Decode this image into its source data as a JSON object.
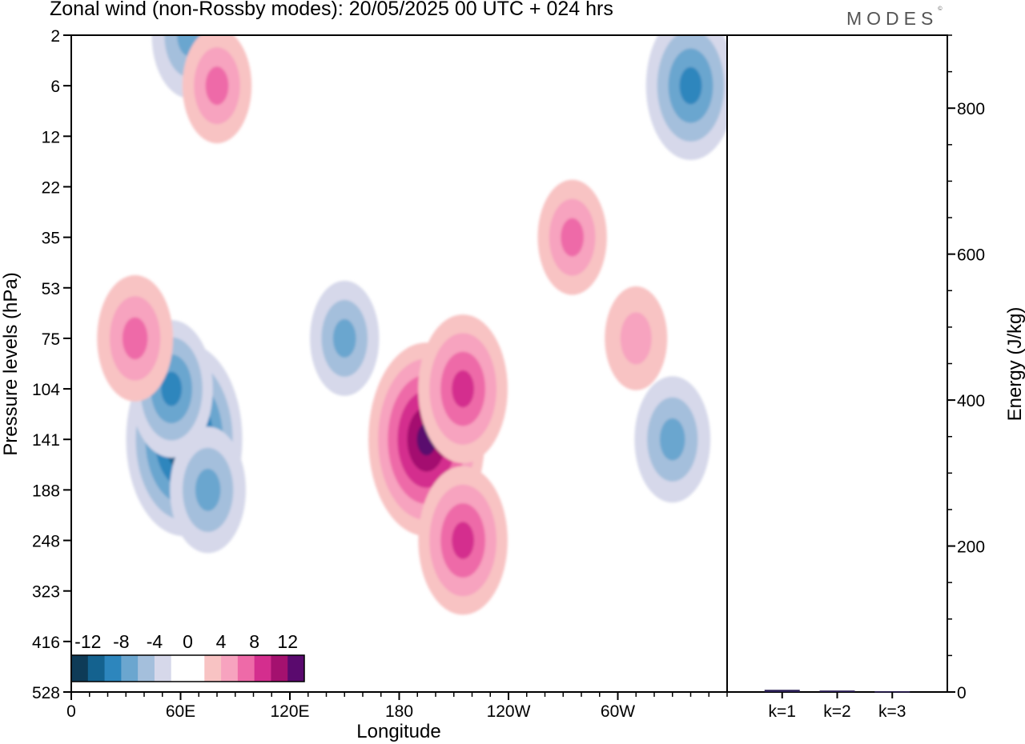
{
  "header": {
    "title": "Zonal wind (non-Rossby modes):  20/05/2025  00 UTC  + 024 hrs",
    "logo_text": "MODES",
    "logo_mark": "©"
  },
  "chart_data": [
    {
      "type": "heatmap",
      "title": "Zonal wind (non-Rossby modes):  20/05/2025  00 UTC  + 024 hrs",
      "xlabel": "Longitude",
      "ylabel": "Pressure levels (hPa)",
      "x_ticks": [
        "0",
        "60E",
        "120E",
        "180",
        "120W",
        "60W"
      ],
      "x_tick_degrees": [
        0,
        60,
        120,
        180,
        240,
        300
      ],
      "xlim": [
        0,
        360
      ],
      "y_ticks": [
        "2",
        "6",
        "12",
        "22",
        "35",
        "53",
        "75",
        "104",
        "141",
        "188",
        "248",
        "323",
        "416",
        "528"
      ],
      "y_order": "top-to-bottom",
      "colorbar": {
        "labels": [
          "-12",
          "-8",
          "-4",
          "0",
          "4",
          "8",
          "12"
        ],
        "levels": [
          -14,
          -12,
          -10,
          -8,
          -6,
          -4,
          -2,
          0,
          2,
          4,
          6,
          8,
          10,
          12,
          14
        ],
        "colors": [
          "#0e3b57",
          "#14628f",
          "#2d86bd",
          "#6ba6cf",
          "#a4bfdc",
          "#d6d8ea",
          "#ffffff",
          "#ffffff",
          "#f8c3c3",
          "#f7a3bf",
          "#ee6aa8",
          "#d42e8e",
          "#a4116f",
          "#5a0a6e"
        ],
        "placement": "bottom-left"
      },
      "features": [
        {
          "lon": 62,
          "level": 141,
          "value": -13
        },
        {
          "lon": 55,
          "level": 104,
          "value": -8
        },
        {
          "lon": 75,
          "level": 188,
          "value": -7
        },
        {
          "lon": 340,
          "level": 6,
          "value": -9
        },
        {
          "lon": 330,
          "level": 141,
          "value": -7
        },
        {
          "lon": 150,
          "level": 75,
          "value": -6
        },
        {
          "lon": 65,
          "level": 2,
          "value": -7
        },
        {
          "lon": 35,
          "level": 75,
          "value": 7
        },
        {
          "lon": 195,
          "level": 141,
          "value": 13
        },
        {
          "lon": 215,
          "level": 104,
          "value": 9
        },
        {
          "lon": 215,
          "level": 248,
          "value": 9
        },
        {
          "lon": 275,
          "level": 35,
          "value": 6
        },
        {
          "lon": 310,
          "level": 75,
          "value": 5
        },
        {
          "lon": 80,
          "level": 6,
          "value": 6
        }
      ]
    },
    {
      "type": "bar",
      "ylabel": "Energy (J/kg)",
      "ylim": [
        0,
        900
      ],
      "y_ticks": [
        "0",
        "200",
        "400",
        "600",
        "800"
      ],
      "categories": [
        "k=1",
        "k=2",
        "k=3"
      ],
      "values": [
        3,
        2,
        1
      ]
    }
  ]
}
